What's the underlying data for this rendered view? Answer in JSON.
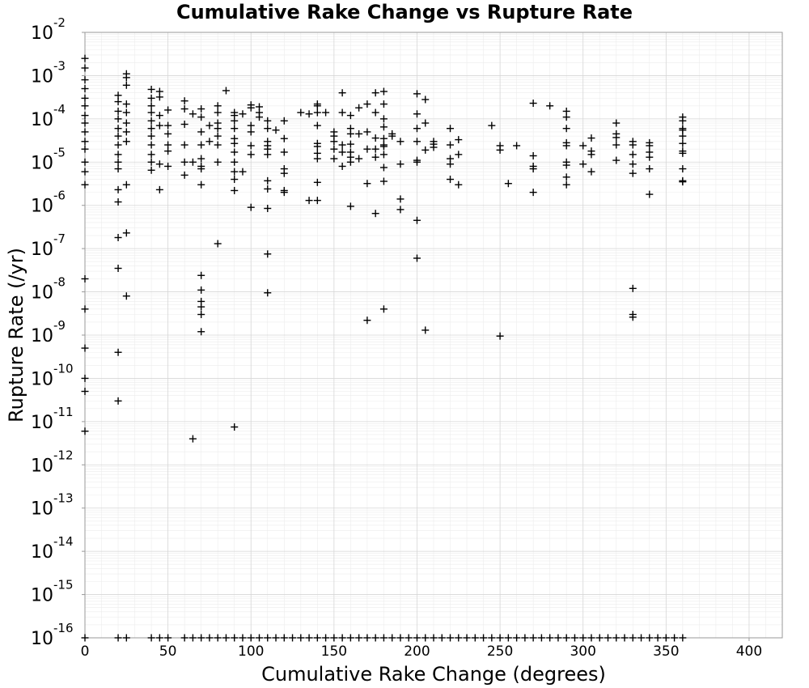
{
  "chart_data": {
    "type": "scatter",
    "title": "Cumulative Rake Change vs Rupture Rate",
    "xlabel": "Cumulative Rake Change (degrees)",
    "ylabel": "Rupture Rate (/yr)",
    "xlim": [
      0,
      420
    ],
    "ylim": [
      1e-16,
      0.01
    ],
    "yscale": "log",
    "grid": true,
    "marker": "+",
    "marker_color": "#000000",
    "x_ticks": [
      0,
      50,
      100,
      150,
      200,
      250,
      300,
      350,
      400
    ],
    "x_tick_labels": [
      "0",
      "50",
      "100",
      "150",
      "200",
      "250",
      "300",
      "350",
      "400"
    ],
    "y_tick_exponents": [
      -2,
      -3,
      -4,
      -5,
      -6,
      -7,
      -8,
      -9,
      -10,
      -11,
      -12,
      -13,
      -14,
      -15,
      -16
    ],
    "y_tick_base": "10",
    "y_tick_exponent_labels": [
      "-2",
      "-3",
      "-4",
      "-5",
      "-6",
      "-7",
      "-8",
      "-9",
      "-10",
      "-11",
      "-12",
      "-13",
      "-14",
      "-15",
      "-16"
    ],
    "points": [
      [
        0,
        0.0025
      ],
      [
        0,
        0.0015
      ],
      [
        0,
        0.0008
      ],
      [
        0,
        0.0005
      ],
      [
        0,
        0.0003
      ],
      [
        0,
        0.0002
      ],
      [
        0,
        0.00012
      ],
      [
        0,
        8e-05
      ],
      [
        0,
        5e-05
      ],
      [
        0,
        3e-05
      ],
      [
        0,
        2e-05
      ],
      [
        0,
        1e-05
      ],
      [
        0,
        6e-06
      ],
      [
        0,
        3e-06
      ],
      [
        0,
        2e-08
      ],
      [
        0,
        4e-09
      ],
      [
        0,
        5e-10
      ],
      [
        0,
        1e-10
      ],
      [
        0,
        5e-11
      ],
      [
        0,
        6e-12
      ],
      [
        20,
        0.00035
      ],
      [
        20,
        0.00025
      ],
      [
        20,
        0.00015
      ],
      [
        20,
        0.0001
      ],
      [
        20,
        6e-05
      ],
      [
        20,
        4e-05
      ],
      [
        20,
        2.5e-05
      ],
      [
        20,
        1.5e-05
      ],
      [
        20,
        1e-05
      ],
      [
        20,
        7e-06
      ],
      [
        20,
        2.3e-06
      ],
      [
        20,
        1.2e-06
      ],
      [
        20,
        1.8e-07
      ],
      [
        20,
        3.5e-08
      ],
      [
        20,
        4e-10
      ],
      [
        20,
        3e-11
      ],
      [
        25,
        0.0011
      ],
      [
        25,
        0.0009
      ],
      [
        25,
        0.0006
      ],
      [
        25,
        0.00022
      ],
      [
        25,
        0.00014
      ],
      [
        25,
        8e-05
      ],
      [
        25,
        5e-05
      ],
      [
        25,
        3e-05
      ],
      [
        25,
        3e-06
      ],
      [
        25,
        2.3e-07
      ],
      [
        25,
        8e-09
      ],
      [
        40,
        0.00048
      ],
      [
        40,
        0.0003
      ],
      [
        40,
        0.0002
      ],
      [
        40,
        0.00014
      ],
      [
        40,
        9e-05
      ],
      [
        40,
        6e-05
      ],
      [
        40,
        4e-05
      ],
      [
        40,
        2.5e-05
      ],
      [
        40,
        1.5e-05
      ],
      [
        40,
        1e-05
      ],
      [
        40,
        6.5e-06
      ],
      [
        45,
        0.00043
      ],
      [
        45,
        0.00032
      ],
      [
        45,
        0.00012
      ],
      [
        45,
        7e-05
      ],
      [
        45,
        9e-06
      ],
      [
        45,
        2.3e-06
      ],
      [
        50,
        0.00016
      ],
      [
        50,
        7e-05
      ],
      [
        50,
        4.5e-05
      ],
      [
        50,
        2.5e-05
      ],
      [
        50,
        1.8e-05
      ],
      [
        50,
        8e-06
      ],
      [
        60,
        0.00026
      ],
      [
        60,
        0.00017
      ],
      [
        60,
        7.5e-05
      ],
      [
        60,
        2.5e-05
      ],
      [
        60,
        1e-05
      ],
      [
        60,
        5e-06
      ],
      [
        65,
        0.00013
      ],
      [
        65,
        1e-05
      ],
      [
        65,
        4e-12
      ],
      [
        70,
        0.00017
      ],
      [
        70,
        0.00011
      ],
      [
        70,
        5e-05
      ],
      [
        70,
        2.5e-05
      ],
      [
        70,
        1.2e-05
      ],
      [
        70,
        8e-06
      ],
      [
        70,
        7e-06
      ],
      [
        70,
        3e-06
      ],
      [
        70,
        2.4e-08
      ],
      [
        70,
        1.1e-08
      ],
      [
        70,
        6e-09
      ],
      [
        70,
        4.5e-09
      ],
      [
        70,
        3e-09
      ],
      [
        70,
        1.2e-09
      ],
      [
        75,
        7e-05
      ],
      [
        75,
        3e-05
      ],
      [
        80,
        0.0002
      ],
      [
        80,
        0.00014
      ],
      [
        80,
        8e-05
      ],
      [
        80,
        6e-05
      ],
      [
        80,
        4e-05
      ],
      [
        80,
        2.5e-05
      ],
      [
        80,
        1e-05
      ],
      [
        80,
        1.3e-07
      ],
      [
        85,
        0.00045
      ],
      [
        90,
        0.00014
      ],
      [
        90,
        0.00012
      ],
      [
        90,
        9e-05
      ],
      [
        90,
        6e-05
      ],
      [
        90,
        3.5e-05
      ],
      [
        90,
        2.7e-05
      ],
      [
        90,
        1.7e-05
      ],
      [
        90,
        1e-05
      ],
      [
        90,
        6e-06
      ],
      [
        90,
        4e-06
      ],
      [
        90,
        2.2e-06
      ],
      [
        90,
        7.5e-12
      ],
      [
        95,
        0.00013
      ],
      [
        95,
        6e-06
      ],
      [
        100,
        0.00021
      ],
      [
        100,
        0.00018
      ],
      [
        100,
        7e-05
      ],
      [
        100,
        5e-05
      ],
      [
        100,
        2.4e-05
      ],
      [
        100,
        1.5e-05
      ],
      [
        100,
        9e-07
      ],
      [
        105,
        0.00019
      ],
      [
        105,
        0.00014
      ],
      [
        105,
        0.00011
      ],
      [
        110,
        9e-05
      ],
      [
        110,
        6e-05
      ],
      [
        110,
        3e-05
      ],
      [
        110,
        2.4e-05
      ],
      [
        110,
        2e-05
      ],
      [
        110,
        1.5e-05
      ],
      [
        110,
        3.7e-06
      ],
      [
        110,
        2.4e-06
      ],
      [
        110,
        8.5e-07
      ],
      [
        110,
        7.5e-08
      ],
      [
        110,
        9.5e-09
      ],
      [
        115,
        5.5e-05
      ],
      [
        120,
        9e-05
      ],
      [
        120,
        3.5e-05
      ],
      [
        120,
        1.7e-05
      ],
      [
        120,
        7e-06
      ],
      [
        120,
        5.5e-06
      ],
      [
        120,
        2.2e-06
      ],
      [
        120,
        2e-06
      ],
      [
        130,
        0.00014
      ],
      [
        135,
        0.00013
      ],
      [
        135,
        1.3e-06
      ],
      [
        140,
        0.00022
      ],
      [
        140,
        0.0002
      ],
      [
        140,
        0.00014
      ],
      [
        140,
        7e-05
      ],
      [
        140,
        2.7e-05
      ],
      [
        140,
        2.3e-05
      ],
      [
        140,
        1.6e-05
      ],
      [
        140,
        1.2e-05
      ],
      [
        140,
        3.4e-06
      ],
      [
        140,
        1.3e-06
      ],
      [
        145,
        0.00014
      ],
      [
        150,
        5e-05
      ],
      [
        150,
        4e-05
      ],
      [
        150,
        3e-05
      ],
      [
        150,
        2e-05
      ],
      [
        150,
        1.2e-05
      ],
      [
        155,
        0.0004
      ],
      [
        155,
        0.00014
      ],
      [
        155,
        2.5e-05
      ],
      [
        155,
        1.7e-05
      ],
      [
        155,
        8e-06
      ],
      [
        160,
        0.00012
      ],
      [
        160,
        6e-05
      ],
      [
        160,
        4.5e-05
      ],
      [
        160,
        2.6e-05
      ],
      [
        160,
        1.7e-05
      ],
      [
        160,
        1.3e-05
      ],
      [
        160,
        1e-05
      ],
      [
        160,
        9.5e-07
      ],
      [
        165,
        0.00018
      ],
      [
        165,
        4.5e-05
      ],
      [
        165,
        1.2e-05
      ],
      [
        170,
        0.00022
      ],
      [
        170,
        5e-05
      ],
      [
        170,
        2e-05
      ],
      [
        170,
        3.2e-06
      ],
      [
        170,
        2.2e-09
      ],
      [
        175,
        0.0004
      ],
      [
        175,
        0.00014
      ],
      [
        175,
        3.6e-05
      ],
      [
        175,
        2e-05
      ],
      [
        175,
        1.3e-05
      ],
      [
        175,
        6.5e-07
      ],
      [
        180,
        0.00043
      ],
      [
        180,
        0.00022
      ],
      [
        180,
        0.0001
      ],
      [
        180,
        6.5e-05
      ],
      [
        180,
        3.5e-05
      ],
      [
        180,
        2.5e-05
      ],
      [
        180,
        2.3e-05
      ],
      [
        180,
        1.5e-05
      ],
      [
        180,
        7.5e-06
      ],
      [
        180,
        3.6e-06
      ],
      [
        180,
        4e-09
      ],
      [
        185,
        4.5e-05
      ],
      [
        185,
        4e-05
      ],
      [
        190,
        3e-05
      ],
      [
        190,
        9e-06
      ],
      [
        190,
        1.4e-06
      ],
      [
        190,
        8e-07
      ],
      [
        200,
        0.00038
      ],
      [
        200,
        0.00013
      ],
      [
        200,
        6e-05
      ],
      [
        200,
        3e-05
      ],
      [
        200,
        1.1e-05
      ],
      [
        200,
        1e-05
      ],
      [
        200,
        4.5e-07
      ],
      [
        200,
        6e-08
      ],
      [
        205,
        0.00028
      ],
      [
        205,
        8e-05
      ],
      [
        205,
        1.9e-05
      ],
      [
        205,
        1.3e-09
      ],
      [
        210,
        3e-05
      ],
      [
        210,
        2.6e-05
      ],
      [
        210,
        2.2e-05
      ],
      [
        220,
        6e-05
      ],
      [
        220,
        2.5e-05
      ],
      [
        220,
        1.2e-05
      ],
      [
        220,
        9e-06
      ],
      [
        220,
        4e-06
      ],
      [
        225,
        3.3e-05
      ],
      [
        225,
        1.5e-05
      ],
      [
        225,
        3e-06
      ],
      [
        245,
        7e-05
      ],
      [
        250,
        2.4e-05
      ],
      [
        250,
        1.9e-05
      ],
      [
        250,
        9.5e-10
      ],
      [
        255,
        3.2e-06
      ],
      [
        260,
        2.4e-05
      ],
      [
        270,
        0.00023
      ],
      [
        270,
        1.4e-05
      ],
      [
        270,
        8e-06
      ],
      [
        270,
        7e-06
      ],
      [
        270,
        2e-06
      ],
      [
        280,
        0.0002
      ],
      [
        290,
        0.00015
      ],
      [
        290,
        0.00011
      ],
      [
        290,
        6e-05
      ],
      [
        290,
        2.8e-05
      ],
      [
        290,
        2.4e-05
      ],
      [
        290,
        1e-05
      ],
      [
        290,
        8.5e-06
      ],
      [
        290,
        4.5e-06
      ],
      [
        290,
        3e-06
      ],
      [
        300,
        2.4e-05
      ],
      [
        300,
        9e-06
      ],
      [
        305,
        3.6e-05
      ],
      [
        305,
        1.8e-05
      ],
      [
        305,
        1.5e-05
      ],
      [
        305,
        6e-06
      ],
      [
        320,
        8e-05
      ],
      [
        320,
        4.5e-05
      ],
      [
        320,
        3.7e-05
      ],
      [
        320,
        2.5e-05
      ],
      [
        320,
        1.1e-05
      ],
      [
        330,
        3e-05
      ],
      [
        330,
        2.5e-05
      ],
      [
        330,
        1.5e-05
      ],
      [
        330,
        9e-06
      ],
      [
        330,
        5.5e-06
      ],
      [
        330,
        1.2e-08
      ],
      [
        330,
        3e-09
      ],
      [
        330,
        2.6e-09
      ],
      [
        340,
        2.8e-05
      ],
      [
        340,
        2.4e-05
      ],
      [
        340,
        1.7e-05
      ],
      [
        340,
        1.3e-05
      ],
      [
        340,
        7e-06
      ],
      [
        340,
        1.8e-06
      ],
      [
        360,
        0.00011
      ],
      [
        360,
        9e-05
      ],
      [
        360,
        6e-05
      ],
      [
        360,
        5.5e-05
      ],
      [
        360,
        4e-05
      ],
      [
        360,
        2.7e-05
      ],
      [
        360,
        1.8e-05
      ],
      [
        360,
        1.6e-05
      ],
      [
        360,
        7e-06
      ],
      [
        360,
        3.7e-06
      ],
      [
        360,
        3.5e-06
      ]
    ],
    "zero_rate_x": [
      0,
      20,
      25,
      40,
      45,
      50,
      60,
      65,
      70,
      75,
      80,
      85,
      90,
      95,
      100,
      105,
      110,
      115,
      120,
      125,
      130,
      135,
      140,
      145,
      150,
      155,
      160,
      165,
      170,
      175,
      180,
      185,
      190,
      195,
      200,
      205,
      210,
      215,
      220,
      225,
      230,
      235,
      240,
      245,
      250,
      255,
      260,
      265,
      270,
      275,
      280,
      285,
      290,
      295,
      300,
      305,
      310,
      315,
      320,
      325,
      330,
      335,
      340,
      345,
      350,
      355,
      360
    ],
    "zero_rate_y": 1e-16
  }
}
